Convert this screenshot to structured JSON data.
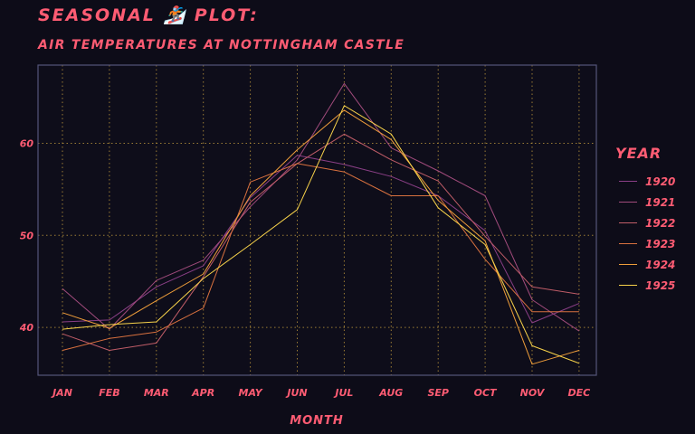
{
  "chart_data": {
    "type": "line",
    "title": "SEASONAL 🏂 PLOT:",
    "subtitle": "AIR TEMPERATURES AT NOTTINGHAM CASTLE",
    "xlabel": "MONTH",
    "ylabel": "",
    "categories": [
      "JAN",
      "FEB",
      "MAR",
      "APR",
      "MAY",
      "JUN",
      "JUL",
      "AUG",
      "SEP",
      "OCT",
      "NOV",
      "DEC"
    ],
    "ylim": [
      34.8,
      68.5
    ],
    "yticks": [
      40,
      50,
      60
    ],
    "grid": true,
    "legend_title": "YEAR",
    "legend_position": "right",
    "series": [
      {
        "name": "1920",
        "color": "#8a3f86",
        "values": [
          40.6,
          40.8,
          44.4,
          46.7,
          54.1,
          58.7,
          57.7,
          56.4,
          54.3,
          50.5,
          40.5,
          42.6
        ]
      },
      {
        "name": "1921",
        "color": "#a14b7c",
        "values": [
          44.2,
          39.8,
          45.1,
          47.3,
          53.1,
          58.2,
          66.5,
          59.5,
          57.0,
          54.3,
          43.0,
          39.6
        ]
      },
      {
        "name": "1922",
        "color": "#c15d68",
        "values": [
          39.3,
          37.5,
          38.3,
          45.5,
          53.6,
          57.8,
          61.0,
          58.2,
          55.9,
          49.9,
          44.4,
          43.6
        ]
      },
      {
        "name": "1923",
        "color": "#d9713f",
        "values": [
          37.5,
          38.8,
          39.5,
          42.1,
          55.8,
          57.8,
          56.9,
          54.3,
          54.3,
          47.4,
          41.7,
          41.7
        ]
      },
      {
        "name": "1924",
        "color": "#ee9d3a",
        "values": [
          41.6,
          39.9,
          42.9,
          45.8,
          54.3,
          59.3,
          63.6,
          60.4,
          53.8,
          49.4,
          36.0,
          37.5
        ]
      },
      {
        "name": "1925",
        "color": "#f7d24a",
        "values": [
          39.8,
          40.3,
          40.6,
          45.3,
          49.0,
          52.8,
          64.1,
          61.0,
          53.0,
          49.0,
          38.0,
          36.1
        ]
      }
    ]
  }
}
